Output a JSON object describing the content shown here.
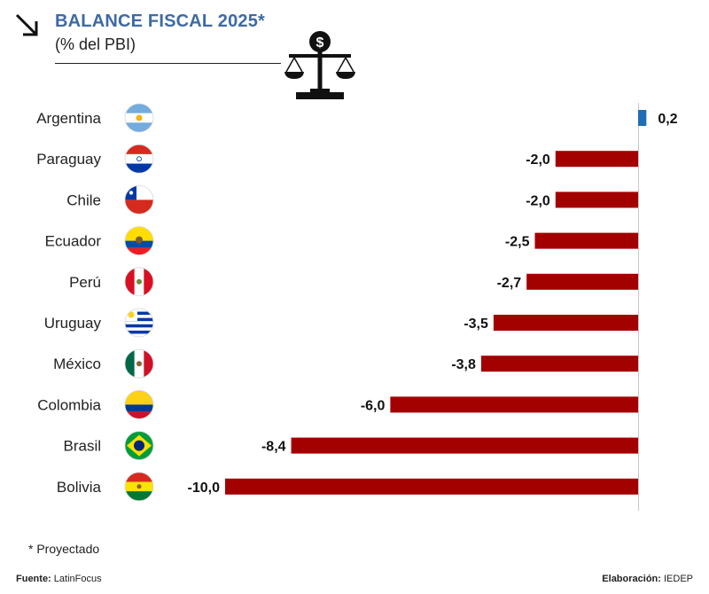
{
  "header": {
    "title": "BALANCE FISCAL 2025*",
    "subtitle": "(% del PBI)"
  },
  "footer": {
    "note": "* Proyectado",
    "source_label": "Fuente:",
    "source_value": "LatinFocus",
    "credit_label": "Elaboración:",
    "credit_value": "IEDEP"
  },
  "colors": {
    "negative": "#a30000",
    "positive": "#1f6db5",
    "title": "#3e6aa6"
  },
  "chart_data": {
    "type": "bar",
    "orientation": "horizontal",
    "title": "BALANCE FISCAL 2025*",
    "subtitle": "(% del PBI)",
    "xlim": [
      -10.0,
      0.2
    ],
    "categories": [
      "Argentina",
      "Paraguay",
      "Chile",
      "Ecuador",
      "Perú",
      "Uruguay",
      "México",
      "Colombia",
      "Brasil",
      "Bolivia"
    ],
    "values": [
      0.2,
      -2.0,
      -2.0,
      -2.5,
      -2.7,
      -3.5,
      -3.8,
      -6.0,
      -8.4,
      -10.0
    ],
    "value_labels": [
      "0,2",
      "-2,0",
      "-2,0",
      "-2,5",
      "-2,7",
      "-3,5",
      "-3,8",
      "-6,0",
      "-8,4",
      "-10,0"
    ],
    "flags": [
      "argentina-flag-icon",
      "paraguay-flag-icon",
      "chile-flag-icon",
      "ecuador-flag-icon",
      "peru-flag-icon",
      "uruguay-flag-icon",
      "mexico-flag-icon",
      "colombia-flag-icon",
      "brazil-flag-icon",
      "bolivia-flag-icon"
    ],
    "grid": false,
    "legend": "none"
  }
}
